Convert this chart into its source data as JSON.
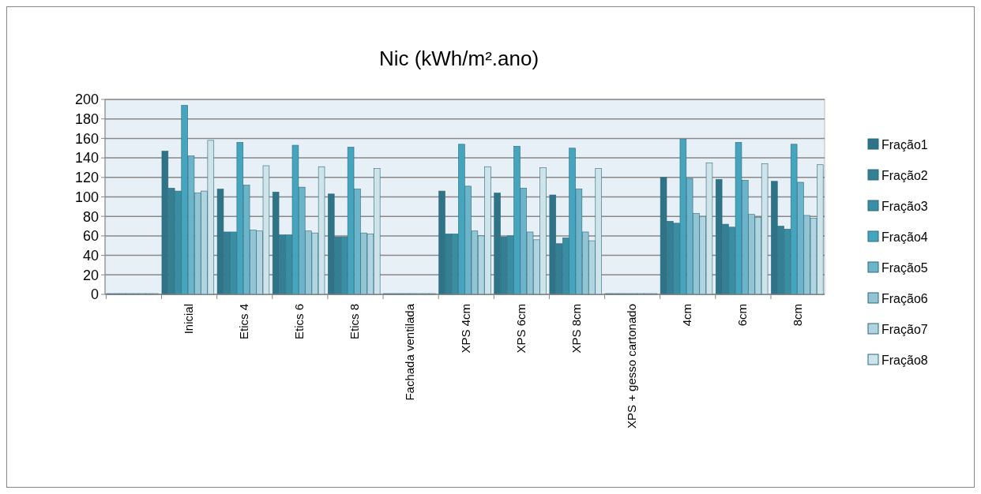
{
  "chart_data": {
    "type": "bar",
    "title": "Nic (kWh/m².ano)",
    "categories": [
      null,
      "Inicial",
      "Etics 4",
      "Etics 6",
      "Etics 8",
      "Fachada ventilada",
      "XPS 4cm",
      "XPS 6cm",
      "XPS 8cm",
      "XPS + gesso cartonado",
      "4cm",
      "6cm",
      "8cm"
    ],
    "series": [
      {
        "name": "Fração1",
        "color": "#2e7386",
        "values": [
          0,
          147,
          108,
          105,
          103,
          0,
          106,
          104,
          102,
          0,
          120,
          118,
          116
        ]
      },
      {
        "name": "Fração2",
        "color": "#347f93",
        "values": [
          0,
          109,
          64,
          61,
          59,
          0,
          62,
          59,
          52,
          0,
          75,
          72,
          70
        ]
      },
      {
        "name": "Fração3",
        "color": "#3a8ea3",
        "values": [
          0,
          106,
          64,
          61,
          59,
          0,
          62,
          60,
          58,
          0,
          73,
          69,
          67
        ]
      },
      {
        "name": "Fração4",
        "color": "#45a5bf",
        "values": [
          0,
          194,
          156,
          153,
          151,
          0,
          154,
          152,
          150,
          0,
          159,
          156,
          154
        ]
      },
      {
        "name": "Fração5",
        "color": "#6bb4ca",
        "values": [
          0,
          142,
          112,
          110,
          108,
          0,
          111,
          109,
          108,
          0,
          119,
          117,
          115
        ]
      },
      {
        "name": "Fração6",
        "color": "#93c4d4",
        "values": [
          0,
          104,
          66,
          65,
          63,
          0,
          65,
          64,
          64,
          0,
          83,
          82,
          81
        ]
      },
      {
        "name": "Fração7",
        "color": "#b0d5e1",
        "values": [
          0,
          106,
          65,
          63,
          62,
          0,
          60,
          56,
          55,
          0,
          80,
          79,
          78
        ]
      },
      {
        "name": "Fração8",
        "color": "#cfe3eb",
        "values": [
          0,
          158,
          132,
          131,
          129,
          0,
          131,
          130,
          129,
          0,
          135,
          134,
          133
        ]
      }
    ],
    "ylim": [
      0,
      200
    ],
    "yticks": [
      0,
      20,
      40,
      60,
      80,
      100,
      120,
      140,
      160,
      180,
      200
    ],
    "grid": "y",
    "legend": "right"
  }
}
